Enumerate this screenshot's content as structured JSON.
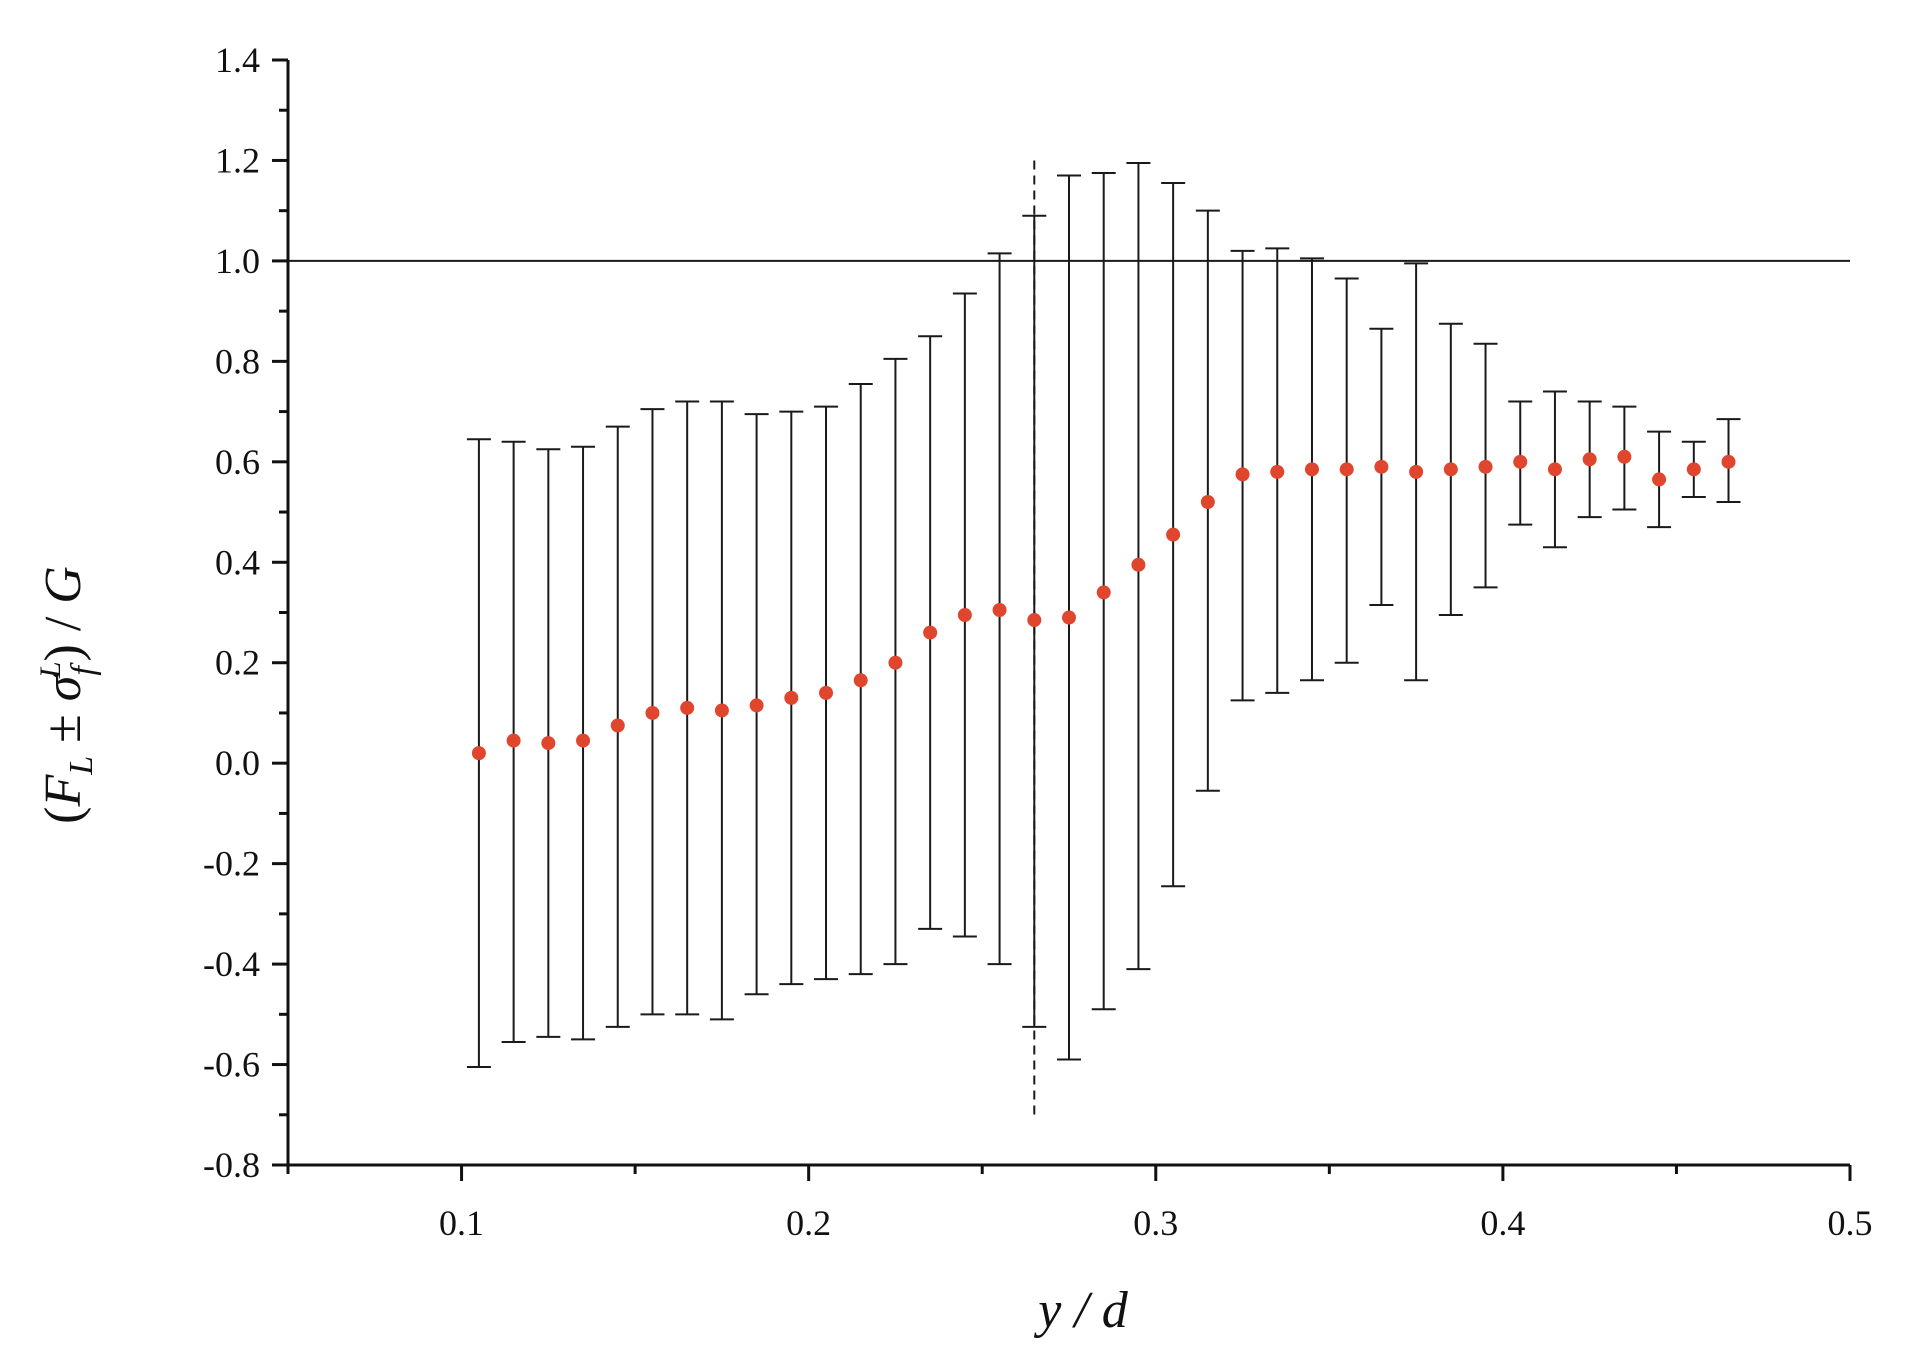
{
  "chart_data": {
    "type": "scatter",
    "title": "",
    "xlabel": "y / d",
    "ylabel": "(F_L ± σ_f^L) / G",
    "ylabel_parts": {
      "open": "(",
      "F": "F",
      "F_sub": "L",
      "pm": " ± ",
      "sigma": "σ",
      "sigma_sub": "f",
      "sigma_sup": "L",
      "close": ") / ",
      "G": "G"
    },
    "xlim": [
      0.05,
      0.5
    ],
    "ylim": [
      -0.8,
      1.4
    ],
    "x_major_ticks": [
      0.1,
      0.2,
      0.3,
      0.4,
      0.5
    ],
    "x_tick_labels": [
      "0.1",
      "0.2",
      "0.3",
      "0.4",
      "0.5"
    ],
    "x_minor_ticks": [
      0.05,
      0.15,
      0.25,
      0.35,
      0.45
    ],
    "y_major_ticks": [
      -0.8,
      -0.6,
      -0.4,
      -0.2,
      0.0,
      0.2,
      0.4,
      0.6,
      0.8,
      1.0,
      1.2,
      1.4
    ],
    "y_tick_labels": [
      "-0.8",
      "-0.6",
      "-0.4",
      "-0.2",
      "0.0",
      "0.2",
      "0.4",
      "0.6",
      "0.8",
      "1.0",
      "1.2",
      "1.4"
    ],
    "y_minor_ticks": [
      -0.7,
      -0.5,
      -0.3,
      -0.1,
      0.1,
      0.3,
      0.5,
      0.7,
      0.9,
      1.1,
      1.3
    ],
    "grid": false,
    "legend": "none",
    "reference_line": {
      "orientation": "horizontal",
      "y": 1.0,
      "style": "solid"
    },
    "marker_line": {
      "orientation": "vertical",
      "x": 0.265,
      "y_range": [
        -0.7,
        1.2
      ],
      "style": "dashed"
    },
    "marker_color": "#e0452e",
    "errorbar_color": "#1a1a1a",
    "series": [
      {
        "x": [
          0.105,
          0.115,
          0.125,
          0.135,
          0.145,
          0.155,
          0.165,
          0.175,
          0.185,
          0.195,
          0.205,
          0.215,
          0.225,
          0.235,
          0.245,
          0.255,
          0.265,
          0.275,
          0.285,
          0.295,
          0.305,
          0.315,
          0.325,
          0.335,
          0.345,
          0.355,
          0.365,
          0.375,
          0.385,
          0.395,
          0.405,
          0.415,
          0.425,
          0.435,
          0.445,
          0.455,
          0.465
        ],
        "y": [
          0.02,
          0.045,
          0.04,
          0.045,
          0.075,
          0.1,
          0.11,
          0.105,
          0.115,
          0.13,
          0.14,
          0.165,
          0.2,
          0.26,
          0.295,
          0.305,
          0.285,
          0.29,
          0.34,
          0.395,
          0.455,
          0.52,
          0.575,
          0.58,
          0.585,
          0.585,
          0.59,
          0.58,
          0.585,
          0.59,
          0.6,
          0.585,
          0.605,
          0.61,
          0.565,
          0.585,
          0.6
        ],
        "error_upper": [
          0.645,
          0.64,
          0.625,
          0.63,
          0.67,
          0.705,
          0.72,
          0.72,
          0.695,
          0.7,
          0.71,
          0.755,
          0.805,
          0.85,
          0.935,
          1.015,
          1.09,
          1.17,
          1.175,
          1.195,
          1.155,
          1.1,
          1.02,
          1.025,
          1.005,
          0.965,
          0.865,
          0.995,
          0.875,
          0.835,
          0.72,
          0.74,
          0.72,
          0.71,
          0.66,
          0.64,
          0.685
        ],
        "error_lower": [
          -0.605,
          -0.555,
          -0.545,
          -0.55,
          -0.525,
          -0.5,
          -0.5,
          -0.51,
          -0.46,
          -0.44,
          -0.43,
          -0.42,
          -0.4,
          -0.33,
          -0.345,
          -0.4,
          -0.525,
          -0.59,
          -0.49,
          -0.41,
          -0.245,
          -0.055,
          0.125,
          0.14,
          0.165,
          0.2,
          0.315,
          0.165,
          0.295,
          0.35,
          0.475,
          0.43,
          0.49,
          0.505,
          0.47,
          0.53,
          0.52
        ]
      }
    ]
  }
}
